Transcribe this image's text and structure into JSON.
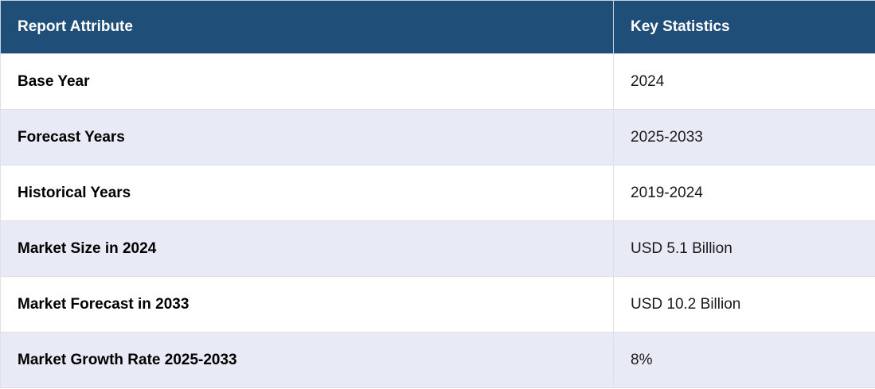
{
  "table": {
    "headers": {
      "attribute": "Report Attribute",
      "statistics": "Key Statistics"
    },
    "rows": [
      {
        "attribute": "Base Year",
        "value": "2024"
      },
      {
        "attribute": "Forecast Years",
        "value": "2025-2033"
      },
      {
        "attribute": "Historical Years",
        "value": "2019-2024"
      },
      {
        "attribute": "Market Size in 2024",
        "value": "USD 5.1 Billion"
      },
      {
        "attribute": "Market Forecast in 2033",
        "value": "USD 10.2 Billion"
      },
      {
        "attribute": "Market Growth Rate 2025-2033",
        "value": "8%"
      }
    ]
  },
  "colors": {
    "header_background": "#1f4e79",
    "header_text": "#ffffff",
    "row_alternate": "#e8eaf5",
    "row_default": "#ffffff"
  }
}
